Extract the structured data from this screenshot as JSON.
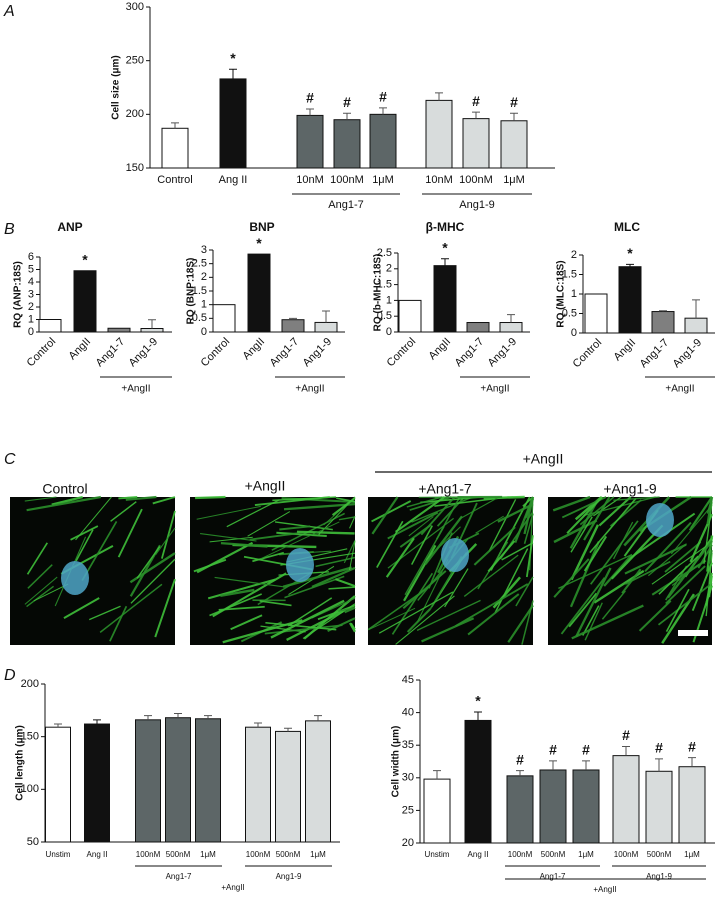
{
  "chart_data": [
    {
      "type": "bar",
      "panel": "A",
      "ylabel": "Cell size (μm)",
      "categories": [
        "Control",
        "Ang II",
        "10nM",
        "100nM",
        "1μM",
        "10nM",
        "100nM",
        "1μM"
      ],
      "values": [
        187,
        233,
        199,
        195,
        200,
        213,
        196,
        194
      ],
      "errors": [
        5,
        9,
        6,
        6,
        6,
        7,
        6,
        7
      ],
      "colors": [
        "#ffffff",
        "#111111",
        "#5d6667",
        "#5d6667",
        "#5d6667",
        "#d8dcdc",
        "#d8dcdc",
        "#d8dcdc"
      ],
      "annotations": [
        null,
        "*",
        "#",
        "#",
        "#",
        null,
        "#",
        "#"
      ],
      "group_labels": [
        "Ang1-7",
        "Ang1-9"
      ],
      "ylim": [
        150,
        300
      ],
      "yticks": [
        150,
        200,
        250,
        300
      ]
    },
    {
      "type": "bar",
      "panel": "B",
      "title": "ANP",
      "ylabel": "RQ (ANP:18S)",
      "categories": [
        "Control",
        "AngII",
        "Ang1-7",
        "Ang1-9"
      ],
      "values": [
        1,
        4.9,
        0.3,
        0.28
      ],
      "errors": [
        null,
        null,
        null,
        0.7
      ],
      "colors": [
        "#ffffff",
        "#111111",
        "#7f7f7f",
        "#d8dcdc"
      ],
      "annotations": [
        null,
        "*",
        null,
        null
      ],
      "bracket_label": "+AngII",
      "ylim": [
        0,
        6
      ],
      "yticks": [
        0,
        1,
        2,
        3,
        4,
        5,
        6
      ]
    },
    {
      "type": "bar",
      "title": "BNP",
      "ylabel": "RQ (BNP:18S)",
      "categories": [
        "Control",
        "AngII",
        "Ang1-7",
        "Ang1-9"
      ],
      "values": [
        1,
        2.85,
        0.45,
        0.35
      ],
      "errors": [
        null,
        null,
        0.05,
        0.42
      ],
      "colors": [
        "#ffffff",
        "#111111",
        "#7f7f7f",
        "#d8dcdc"
      ],
      "annotations": [
        null,
        "*",
        null,
        null
      ],
      "bracket_label": "+AngII",
      "ylim": [
        0,
        3
      ],
      "yticks": [
        0,
        0.5,
        1,
        1.5,
        2,
        2.5,
        3
      ]
    },
    {
      "type": "bar",
      "title": "β-MHC",
      "ylabel": "RQ (b-MHC:18S)",
      "categories": [
        "Control",
        "AngII",
        "Ang1-7",
        "Ang1-9"
      ],
      "values": [
        1,
        2.1,
        0.3,
        0.3
      ],
      "errors": [
        null,
        0.22,
        null,
        0.25
      ],
      "colors": [
        "#ffffff",
        "#111111",
        "#7f7f7f",
        "#d8dcdc"
      ],
      "annotations": [
        null,
        "*",
        null,
        null
      ],
      "bracket_label": "+AngII",
      "ylim": [
        0,
        2.5
      ],
      "yticks": [
        0,
        0.5,
        1,
        1.5,
        2,
        2.5
      ]
    },
    {
      "type": "bar",
      "title": "MLC",
      "ylabel": "RQ (MLC:18S)",
      "categories": [
        "Control",
        "AngII",
        "Ang1-7",
        "Ang1-9"
      ],
      "values": [
        1,
        1.7,
        0.55,
        0.38
      ],
      "errors": [
        null,
        0.06,
        0.02,
        0.47
      ],
      "colors": [
        "#ffffff",
        "#111111",
        "#7f7f7f",
        "#d8dcdc"
      ],
      "annotations": [
        null,
        "*",
        null,
        null
      ],
      "bracket_label": "+AngII",
      "ylim": [
        0,
        2
      ],
      "yticks": [
        0,
        0.5,
        1,
        1.5,
        2
      ]
    },
    {
      "type": "bar",
      "panel": "D",
      "ylabel": "Cell length (μm)",
      "categories": [
        "Unstim",
        "Ang II",
        "100nM",
        "500nM",
        "1μM",
        "100nM",
        "500nM",
        "1μM"
      ],
      "values": [
        159,
        162,
        166,
        168,
        167,
        159,
        155,
        165
      ],
      "errors": [
        3,
        4,
        4,
        4,
        3,
        4,
        3,
        5
      ],
      "colors": [
        "#ffffff",
        "#111111",
        "#5d6667",
        "#5d6667",
        "#5d6667",
        "#d8dcdc",
        "#d8dcdc",
        "#d8dcdc"
      ],
      "group_labels": [
        "Ang1-7",
        "Ang1-9"
      ],
      "bracket_label": "+AngII",
      "ylim": [
        50,
        200
      ],
      "yticks": [
        50,
        100,
        150,
        200
      ]
    },
    {
      "type": "bar",
      "ylabel": "Cell width (μm)",
      "categories": [
        "Unstim",
        "Ang II",
        "100nM",
        "500nM",
        "1μM",
        "100nM",
        "500nM",
        "1μM"
      ],
      "values": [
        29.8,
        38.8,
        30.3,
        31.2,
        31.2,
        33.4,
        31.0,
        31.7
      ],
      "errors": [
        1.3,
        1.3,
        0.8,
        1.4,
        1.4,
        1.4,
        1.9,
        1.4
      ],
      "colors": [
        "#ffffff",
        "#111111",
        "#5d6667",
        "#5d6667",
        "#5d6667",
        "#d8dcdc",
        "#d8dcdc",
        "#d8dcdc"
      ],
      "annotations": [
        null,
        "*",
        "#",
        "#",
        "#",
        "#",
        "#",
        "#"
      ],
      "group_labels": [
        "Ang1-7",
        "Ang1-9"
      ],
      "bracket_label": "+AngII",
      "ylim": [
        20,
        45
      ],
      "yticks": [
        20,
        25,
        30,
        35,
        40,
        45
      ]
    }
  ],
  "panel_c": {
    "panel": "C",
    "group_label": "+AngII",
    "labels": [
      "Control",
      "+AngII",
      "+Ang1-7",
      "+Ang1-9"
    ]
  }
}
